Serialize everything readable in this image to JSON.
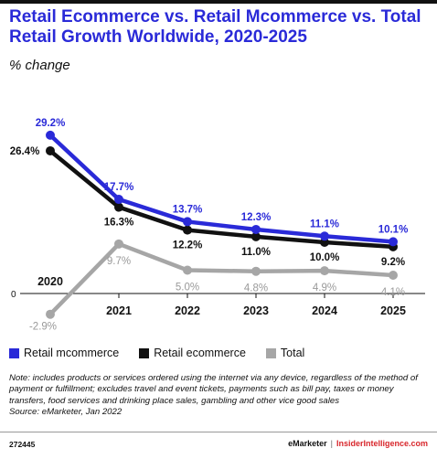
{
  "header": {
    "title": "Retail Ecommerce vs. Retail Mcommerce vs. Total Retail Growth Worldwide, 2020-2025",
    "subtitle": "% change"
  },
  "chart_data": {
    "type": "line",
    "x": [
      "2020",
      "2021",
      "2022",
      "2023",
      "2024",
      "2025"
    ],
    "series": [
      {
        "name": "Retail mcommerce",
        "values": [
          29.2,
          17.7,
          13.7,
          12.3,
          11.1,
          10.1
        ],
        "labels": [
          "29.2%",
          "17.7%",
          "13.7%",
          "12.3%",
          "11.1%",
          "10.1%"
        ],
        "color": "#2a2ad8"
      },
      {
        "name": "Retail ecommerce",
        "values": [
          26.4,
          16.3,
          12.2,
          11.0,
          10.0,
          9.2
        ],
        "labels": [
          "26.4%",
          "16.3%",
          "12.2%",
          "11.0%",
          "10.0%",
          "9.2%"
        ],
        "color": "#111111"
      },
      {
        "name": "Total",
        "values": [
          -2.9,
          9.7,
          5.0,
          4.8,
          4.9,
          4.1
        ],
        "labels": [
          "-2.9%",
          "9.7%",
          "5.0%",
          "4.8%",
          "4.9%",
          "4.1%"
        ],
        "color": "#a6a6a6"
      }
    ],
    "zero_label": "0",
    "ylim": [
      -4,
      31
    ],
    "grid": false,
    "legend_position": "bottom-left"
  },
  "note": {
    "text": "Note: includes products or services ordered using the internet via any device, regardless of the method of payment or fulfillment; excludes travel and event tickets, payments such as bill pay, taxes or money transfers, food services and drinking place sales, gambling and other vice good sales",
    "source": "Source: eMarketer, Jan 2022"
  },
  "footer": {
    "chart_id": "272445",
    "brand": "eMarketer",
    "separator": "|",
    "site": "InsiderIntelligence.com"
  }
}
